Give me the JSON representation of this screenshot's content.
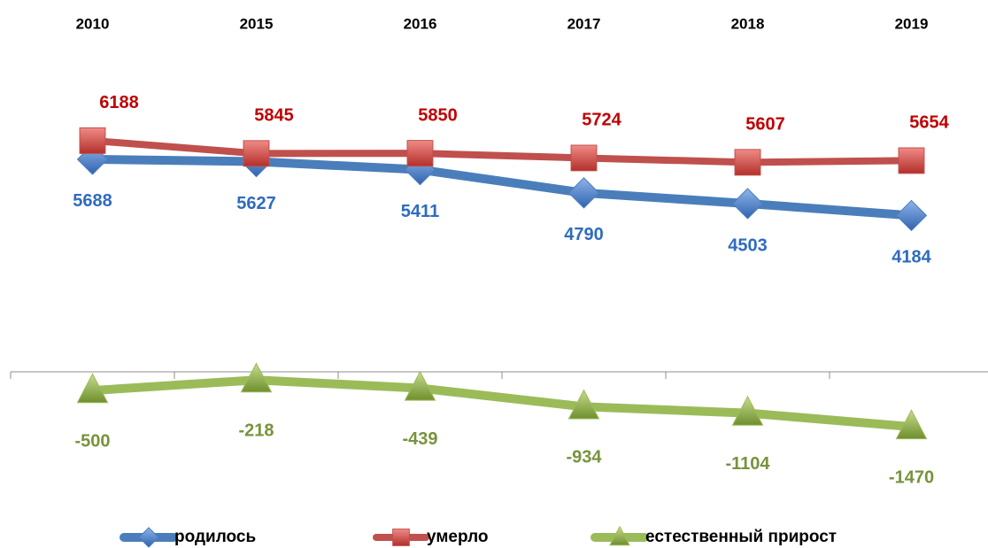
{
  "chart_data": {
    "type": "line",
    "categories": [
      "2010",
      "2015",
      "2016",
      "2017",
      "2018",
      "2019"
    ],
    "ylim": [
      -2000,
      8000
    ],
    "series": [
      {
        "name": "родилось",
        "color": "#4a7ebb",
        "label_color": "#2e6bbf",
        "marker": "diamond",
        "label_position": "below",
        "values": [
          5688,
          5627,
          5411,
          4790,
          4503,
          4184
        ]
      },
      {
        "name": "умерло",
        "color": "#c0504d",
        "label_color": "#c00000",
        "marker": "square",
        "label_position": "above",
        "values": [
          6188,
          5845,
          5850,
          5724,
          5607,
          5654
        ]
      },
      {
        "name": "естественный прирост",
        "color": "#9bbb59",
        "label_color": "#77933c",
        "marker": "triangle",
        "label_position": "below",
        "values": [
          -500,
          -218,
          -439,
          -934,
          -1104,
          -1470
        ]
      }
    ]
  }
}
